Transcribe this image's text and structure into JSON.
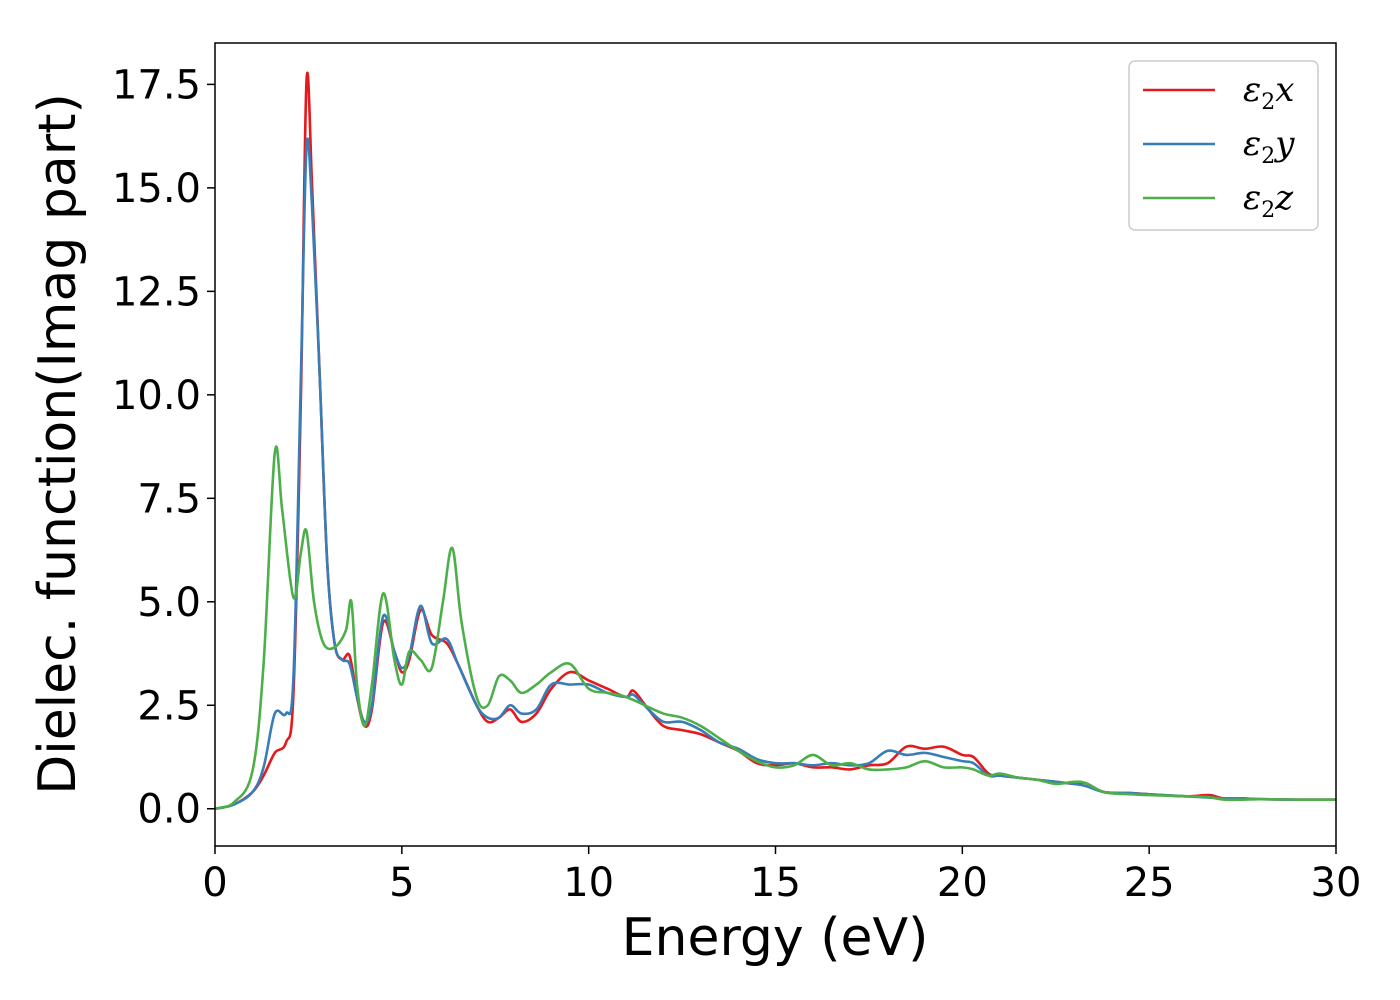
{
  "chart_data": {
    "type": "line",
    "title": "",
    "xlabel": "Energy (eV)",
    "ylabel": "Dielec. function(Imag part)",
    "xlim": [
      0,
      30
    ],
    "ylim": [
      -0.9,
      18.5
    ],
    "xticks": [
      0,
      5,
      10,
      15,
      20,
      25,
      30
    ],
    "xtick_labels": [
      "0",
      "5",
      "10",
      "15",
      "20",
      "25",
      "30"
    ],
    "yticks": [
      0.0,
      2.5,
      5.0,
      7.5,
      10.0,
      12.5,
      15.0,
      17.5
    ],
    "ytick_labels": [
      "0.0",
      "2.5",
      "5.0",
      "7.5",
      "10.0",
      "12.5",
      "15.0",
      "17.5"
    ],
    "grid": false,
    "legend_position": "top-right",
    "series": [
      {
        "name": "ε2x",
        "legend_main": "ε",
        "legend_sub": "2",
        "legend_tail": "x",
        "color": "#e41a1c",
        "points": [
          [
            0,
            0
          ],
          [
            0.5,
            0.1
          ],
          [
            1,
            0.4
          ],
          [
            1.3,
            0.8
          ],
          [
            1.6,
            1.35
          ],
          [
            1.9,
            1.6
          ],
          [
            2.1,
            2.8
          ],
          [
            2.3,
            10.0
          ],
          [
            2.45,
            17.6
          ],
          [
            2.6,
            15.0
          ],
          [
            2.8,
            10.5
          ],
          [
            3,
            6.0
          ],
          [
            3.2,
            4.0
          ],
          [
            3.4,
            3.6
          ],
          [
            3.6,
            3.7
          ],
          [
            3.8,
            2.7
          ],
          [
            4,
            2.0
          ],
          [
            4.2,
            2.4
          ],
          [
            4.5,
            4.5
          ],
          [
            4.8,
            3.8
          ],
          [
            5,
            3.3
          ],
          [
            5.2,
            3.6
          ],
          [
            5.5,
            4.8
          ],
          [
            5.8,
            4.2
          ],
          [
            6.2,
            4.0
          ],
          [
            6.5,
            3.5
          ],
          [
            7,
            2.5
          ],
          [
            7.3,
            2.1
          ],
          [
            7.6,
            2.2
          ],
          [
            7.9,
            2.4
          ],
          [
            8.2,
            2.1
          ],
          [
            8.6,
            2.3
          ],
          [
            9,
            2.9
          ],
          [
            9.5,
            3.3
          ],
          [
            10,
            3.1
          ],
          [
            10.5,
            2.9
          ],
          [
            11,
            2.7
          ],
          [
            11.2,
            2.85
          ],
          [
            11.6,
            2.4
          ],
          [
            12,
            2.0
          ],
          [
            12.5,
            1.9
          ],
          [
            13,
            1.8
          ],
          [
            13.5,
            1.6
          ],
          [
            14,
            1.4
          ],
          [
            14.5,
            1.1
          ],
          [
            15,
            1.05
          ],
          [
            15.5,
            1.1
          ],
          [
            16,
            1.0
          ],
          [
            16.5,
            1.0
          ],
          [
            17,
            0.95
          ],
          [
            17.5,
            1.05
          ],
          [
            18,
            1.1
          ],
          [
            18.5,
            1.5
          ],
          [
            19,
            1.45
          ],
          [
            19.5,
            1.5
          ],
          [
            20,
            1.3
          ],
          [
            20.3,
            1.25
          ],
          [
            20.7,
            0.85
          ],
          [
            21,
            0.8
          ],
          [
            21.5,
            0.75
          ],
          [
            22,
            0.7
          ],
          [
            22.5,
            0.65
          ],
          [
            23,
            0.6
          ],
          [
            23.3,
            0.62
          ],
          [
            23.8,
            0.4
          ],
          [
            24.5,
            0.38
          ],
          [
            25,
            0.35
          ],
          [
            26,
            0.3
          ],
          [
            26.6,
            0.33
          ],
          [
            27,
            0.25
          ],
          [
            27.5,
            0.25
          ],
          [
            28,
            0.23
          ],
          [
            29,
            0.22
          ],
          [
            30,
            0.22
          ]
        ]
      },
      {
        "name": "ε2y",
        "legend_main": "ε",
        "legend_sub": "2",
        "legend_tail": "y",
        "color": "#377eb8",
        "points": [
          [
            0,
            0
          ],
          [
            0.5,
            0.1
          ],
          [
            1,
            0.4
          ],
          [
            1.3,
            1.0
          ],
          [
            1.6,
            2.3
          ],
          [
            1.9,
            2.3
          ],
          [
            2.1,
            3.2
          ],
          [
            2.3,
            10.5
          ],
          [
            2.45,
            16.0
          ],
          [
            2.6,
            14.5
          ],
          [
            2.8,
            10.5
          ],
          [
            3,
            6.0
          ],
          [
            3.2,
            4.0
          ],
          [
            3.4,
            3.6
          ],
          [
            3.6,
            3.5
          ],
          [
            3.8,
            2.7
          ],
          [
            4,
            2.1
          ],
          [
            4.2,
            2.5
          ],
          [
            4.5,
            4.65
          ],
          [
            4.8,
            3.8
          ],
          [
            5,
            3.4
          ],
          [
            5.2,
            3.7
          ],
          [
            5.5,
            4.9
          ],
          [
            5.8,
            4.0
          ],
          [
            6.2,
            4.1
          ],
          [
            6.5,
            3.5
          ],
          [
            7,
            2.5
          ],
          [
            7.3,
            2.2
          ],
          [
            7.6,
            2.2
          ],
          [
            7.9,
            2.5
          ],
          [
            8.2,
            2.3
          ],
          [
            8.6,
            2.4
          ],
          [
            9,
            3.0
          ],
          [
            9.5,
            3.0
          ],
          [
            10,
            3.0
          ],
          [
            10.5,
            2.8
          ],
          [
            11,
            2.7
          ],
          [
            11.2,
            2.75
          ],
          [
            11.6,
            2.4
          ],
          [
            12,
            2.1
          ],
          [
            12.5,
            2.1
          ],
          [
            13,
            1.9
          ],
          [
            13.5,
            1.6
          ],
          [
            14,
            1.45
          ],
          [
            14.5,
            1.2
          ],
          [
            15,
            1.1
          ],
          [
            15.5,
            1.1
          ],
          [
            16,
            1.05
          ],
          [
            16.5,
            1.1
          ],
          [
            17,
            1.05
          ],
          [
            17.5,
            1.1
          ],
          [
            18,
            1.4
          ],
          [
            18.5,
            1.3
          ],
          [
            19,
            1.35
          ],
          [
            19.5,
            1.25
          ],
          [
            20,
            1.15
          ],
          [
            20.3,
            1.1
          ],
          [
            20.7,
            0.8
          ],
          [
            21,
            0.8
          ],
          [
            21.5,
            0.75
          ],
          [
            22,
            0.7
          ],
          [
            22.5,
            0.65
          ],
          [
            23,
            0.6
          ],
          [
            23.3,
            0.55
          ],
          [
            23.8,
            0.4
          ],
          [
            24.5,
            0.38
          ],
          [
            25,
            0.35
          ],
          [
            26,
            0.3
          ],
          [
            26.6,
            0.27
          ],
          [
            27,
            0.25
          ],
          [
            27.5,
            0.25
          ],
          [
            28,
            0.23
          ],
          [
            29,
            0.22
          ],
          [
            30,
            0.22
          ]
        ]
      },
      {
        "name": "ε2z",
        "legend_main": "ε",
        "legend_sub": "2",
        "legend_tail": "z",
        "color": "#4daf4a",
        "points": [
          [
            0,
            0
          ],
          [
            0.5,
            0.15
          ],
          [
            1,
            0.9
          ],
          [
            1.3,
            3.5
          ],
          [
            1.6,
            8.6
          ],
          [
            1.8,
            7.2
          ],
          [
            2.1,
            5.1
          ],
          [
            2.3,
            6.2
          ],
          [
            2.45,
            6.7
          ],
          [
            2.65,
            5.0
          ],
          [
            2.9,
            4.0
          ],
          [
            3.2,
            3.9
          ],
          [
            3.5,
            4.3
          ],
          [
            3.65,
            5.0
          ],
          [
            3.8,
            3.0
          ],
          [
            4,
            2.0
          ],
          [
            4.2,
            3.0
          ],
          [
            4.5,
            5.2
          ],
          [
            4.8,
            3.6
          ],
          [
            5,
            3.0
          ],
          [
            5.2,
            3.8
          ],
          [
            5.5,
            3.6
          ],
          [
            5.8,
            3.4
          ],
          [
            6.1,
            5.0
          ],
          [
            6.35,
            6.3
          ],
          [
            6.6,
            4.5
          ],
          [
            7,
            2.7
          ],
          [
            7.3,
            2.5
          ],
          [
            7.6,
            3.2
          ],
          [
            7.9,
            3.1
          ],
          [
            8.2,
            2.8
          ],
          [
            8.6,
            3.0
          ],
          [
            9,
            3.3
          ],
          [
            9.5,
            3.5
          ],
          [
            10,
            2.9
          ],
          [
            10.5,
            2.8
          ],
          [
            11,
            2.7
          ],
          [
            11.5,
            2.5
          ],
          [
            12,
            2.3
          ],
          [
            12.5,
            2.2
          ],
          [
            13,
            2.0
          ],
          [
            13.5,
            1.7
          ],
          [
            14,
            1.4
          ],
          [
            14.5,
            1.15
          ],
          [
            15,
            1.0
          ],
          [
            15.5,
            1.05
          ],
          [
            16,
            1.3
          ],
          [
            16.5,
            1.05
          ],
          [
            17,
            1.1
          ],
          [
            17.5,
            0.95
          ],
          [
            18,
            0.95
          ],
          [
            18.5,
            1.0
          ],
          [
            19,
            1.15
          ],
          [
            19.5,
            1.0
          ],
          [
            20,
            1.0
          ],
          [
            20.3,
            0.95
          ],
          [
            20.7,
            0.8
          ],
          [
            21,
            0.85
          ],
          [
            21.5,
            0.75
          ],
          [
            22,
            0.7
          ],
          [
            22.5,
            0.6
          ],
          [
            23,
            0.65
          ],
          [
            23.3,
            0.62
          ],
          [
            23.8,
            0.4
          ],
          [
            24.5,
            0.35
          ],
          [
            25,
            0.33
          ],
          [
            26,
            0.3
          ],
          [
            26.6,
            0.28
          ],
          [
            27,
            0.22
          ],
          [
            27.5,
            0.22
          ],
          [
            28,
            0.23
          ],
          [
            29,
            0.22
          ],
          [
            30,
            0.22
          ]
        ]
      }
    ]
  }
}
